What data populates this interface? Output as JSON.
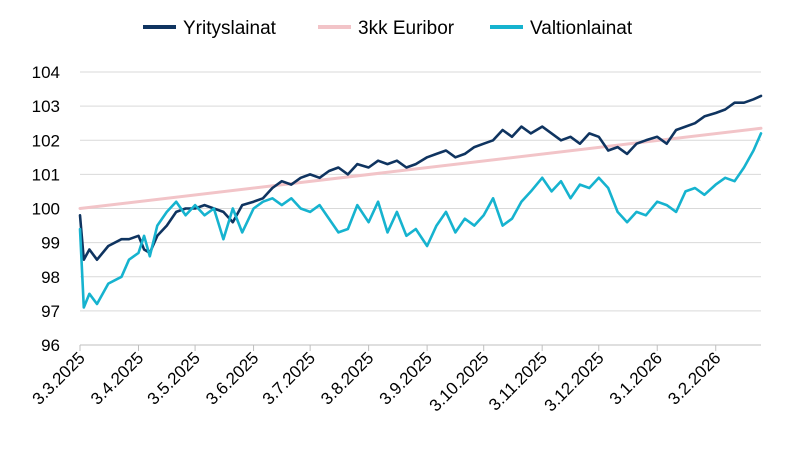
{
  "chart_data": {
    "type": "line",
    "grid": "horizontal",
    "legend_position": "top-center",
    "ylim": [
      96,
      104
    ],
    "y_ticks": [
      "96",
      "97",
      "98",
      "99",
      "100",
      "101",
      "102",
      "103",
      "104"
    ],
    "x_ticks": [
      "3.3.2025",
      "3.4.2025",
      "3.5.2025",
      "3.6.2025",
      "3.7.2025",
      "3.8.2025",
      "3.9.2025",
      "3.10.2025",
      "3.11.2025",
      "3.12.2025",
      "3.1.2026",
      "3.2.2026"
    ],
    "x_start": "3.3.2025",
    "x_end": "27.2.2026",
    "series": [
      {
        "name": "Yrityslainat",
        "color": "#0f3460",
        "x": [
          "3.3.2025",
          "5.3.2025",
          "8.3.2025",
          "12.3.2025",
          "18.3.2025",
          "25.3.2025",
          "29.3.2025",
          "3.4.2025",
          "6.4.2025",
          "9.4.2025",
          "13.4.2025",
          "18.4.2025",
          "23.4.2025",
          "28.4.2025",
          "3.5.2025",
          "8.5.2025",
          "13.5.2025",
          "18.5.2025",
          "23.5.2025",
          "28.5.2025",
          "3.6.2025",
          "8.6.2025",
          "13.6.2025",
          "18.6.2025",
          "23.6.2025",
          "28.6.2025",
          "3.7.2025",
          "8.7.2025",
          "13.7.2025",
          "18.7.2025",
          "23.7.2025",
          "28.7.2025",
          "3.8.2025",
          "8.8.2025",
          "13.8.2025",
          "18.8.2025",
          "23.8.2025",
          "28.8.2025",
          "3.9.2025",
          "8.9.2025",
          "13.9.2025",
          "18.9.2025",
          "23.9.2025",
          "28.9.2025",
          "3.10.2025",
          "8.10.2025",
          "13.10.2025",
          "18.10.2025",
          "23.10.2025",
          "28.10.2025",
          "3.11.2025",
          "8.11.2025",
          "13.11.2025",
          "18.11.2025",
          "23.11.2025",
          "28.11.2025",
          "3.12.2025",
          "8.12.2025",
          "13.12.2025",
          "18.12.2025",
          "23.12.2025",
          "28.12.2025",
          "3.1.2026",
          "8.1.2026",
          "13.1.2026",
          "18.1.2026",
          "23.1.2026",
          "28.1.2026",
          "3.2.2026",
          "8.2.2026",
          "13.2.2026",
          "18.2.2026",
          "23.2.2026",
          "27.2.2026"
        ],
        "values": [
          99.8,
          98.5,
          98.8,
          98.5,
          98.9,
          99.1,
          99.1,
          99.2,
          98.8,
          98.7,
          99.2,
          99.5,
          99.9,
          100.0,
          100.0,
          100.1,
          100.0,
          99.9,
          99.6,
          100.1,
          100.2,
          100.3,
          100.6,
          100.8,
          100.7,
          100.9,
          101.0,
          100.9,
          101.1,
          101.2,
          101.0,
          101.3,
          101.2,
          101.4,
          101.3,
          101.4,
          101.2,
          101.3,
          101.5,
          101.6,
          101.7,
          101.5,
          101.6,
          101.8,
          101.9,
          102.0,
          102.3,
          102.1,
          102.4,
          102.2,
          102.4,
          102.2,
          102.0,
          102.1,
          101.9,
          102.2,
          102.1,
          101.7,
          101.8,
          101.6,
          101.9,
          102.0,
          102.1,
          101.9,
          102.3,
          102.4,
          102.5,
          102.7,
          102.8,
          102.9,
          103.1,
          103.1,
          103.2,
          103.3
        ]
      },
      {
        "name": "3kk Euribor",
        "color": "#f2c4c8",
        "x": [
          "3.3.2025",
          "27.2.2026"
        ],
        "values": [
          100.0,
          102.35
        ]
      },
      {
        "name": "Valtionlainat",
        "color": "#16b3cf",
        "x": [
          "3.3.2025",
          "5.3.2025",
          "8.3.2025",
          "12.3.2025",
          "18.3.2025",
          "25.3.2025",
          "29.3.2025",
          "3.4.2025",
          "6.4.2025",
          "9.4.2025",
          "13.4.2025",
          "18.4.2025",
          "23.4.2025",
          "28.4.2025",
          "3.5.2025",
          "8.5.2025",
          "13.5.2025",
          "18.5.2025",
          "23.5.2025",
          "28.5.2025",
          "3.6.2025",
          "8.6.2025",
          "13.6.2025",
          "18.6.2025",
          "23.6.2025",
          "28.6.2025",
          "3.7.2025",
          "8.7.2025",
          "13.7.2025",
          "18.7.2025",
          "23.7.2025",
          "28.7.2025",
          "3.8.2025",
          "8.8.2025",
          "13.8.2025",
          "18.8.2025",
          "23.8.2025",
          "28.8.2025",
          "3.9.2025",
          "8.9.2025",
          "13.9.2025",
          "18.9.2025",
          "23.9.2025",
          "28.9.2025",
          "3.10.2025",
          "8.10.2025",
          "13.10.2025",
          "18.10.2025",
          "23.10.2025",
          "28.10.2025",
          "3.11.2025",
          "8.11.2025",
          "13.11.2025",
          "18.11.2025",
          "23.11.2025",
          "28.11.2025",
          "3.12.2025",
          "8.12.2025",
          "13.12.2025",
          "18.12.2025",
          "23.12.2025",
          "28.12.2025",
          "3.1.2026",
          "8.1.2026",
          "13.1.2026",
          "18.1.2026",
          "23.1.2026",
          "28.1.2026",
          "3.2.2026",
          "8.2.2026",
          "13.2.2026",
          "18.2.2026",
          "23.2.2026",
          "27.2.2026"
        ],
        "values": [
          99.4,
          97.1,
          97.5,
          97.2,
          97.8,
          98.0,
          98.5,
          98.7,
          99.2,
          98.6,
          99.5,
          99.9,
          100.2,
          99.8,
          100.1,
          99.8,
          100.0,
          99.1,
          100.0,
          99.3,
          100.0,
          100.2,
          100.3,
          100.1,
          100.3,
          100.0,
          99.9,
          100.1,
          99.7,
          99.3,
          99.4,
          100.1,
          99.6,
          100.2,
          99.3,
          99.9,
          99.2,
          99.4,
          98.9,
          99.5,
          99.9,
          99.3,
          99.7,
          99.5,
          99.8,
          100.3,
          99.5,
          99.7,
          100.2,
          100.5,
          100.9,
          100.5,
          100.8,
          100.3,
          100.7,
          100.6,
          100.9,
          100.6,
          99.9,
          99.6,
          99.9,
          99.8,
          100.2,
          100.1,
          99.9,
          100.5,
          100.6,
          100.4,
          100.7,
          100.9,
          100.8,
          101.2,
          101.7,
          102.2
        ]
      }
    ]
  }
}
